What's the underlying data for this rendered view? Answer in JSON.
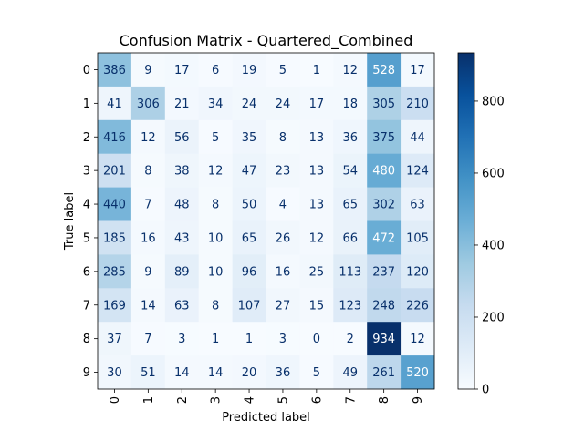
{
  "chart_data": {
    "type": "heatmap",
    "title": "Confusion Matrix - Quartered_Combined",
    "xlabel": "Predicted label",
    "ylabel": "True label",
    "x_ticks": [
      "0",
      "1",
      "2",
      "3",
      "4",
      "5",
      "6",
      "7",
      "8",
      "9"
    ],
    "y_ticks": [
      "0",
      "1",
      "2",
      "3",
      "4",
      "5",
      "6",
      "7",
      "8",
      "9"
    ],
    "matrix": [
      [
        386,
        9,
        17,
        6,
        19,
        5,
        1,
        12,
        528,
        17
      ],
      [
        41,
        306,
        21,
        34,
        24,
        24,
        17,
        18,
        305,
        210
      ],
      [
        416,
        12,
        56,
        5,
        35,
        8,
        13,
        36,
        375,
        44
      ],
      [
        201,
        8,
        38,
        12,
        47,
        23,
        13,
        54,
        480,
        124
      ],
      [
        440,
        7,
        48,
        8,
        50,
        4,
        13,
        65,
        302,
        63
      ],
      [
        185,
        16,
        43,
        10,
        65,
        26,
        12,
        66,
        472,
        105
      ],
      [
        285,
        9,
        89,
        10,
        96,
        16,
        25,
        113,
        237,
        120
      ],
      [
        169,
        14,
        63,
        8,
        107,
        27,
        15,
        123,
        248,
        226
      ],
      [
        37,
        7,
        3,
        1,
        1,
        3,
        0,
        2,
        934,
        12
      ],
      [
        30,
        51,
        14,
        14,
        20,
        36,
        5,
        49,
        261,
        520
      ]
    ],
    "colormap": "Blues",
    "vmin": 0,
    "vmax": 934,
    "colorbar_ticks": [
      0,
      200,
      400,
      600,
      800
    ],
    "text_color_light": "#ffffff",
    "text_color_dark": "#08306b"
  }
}
